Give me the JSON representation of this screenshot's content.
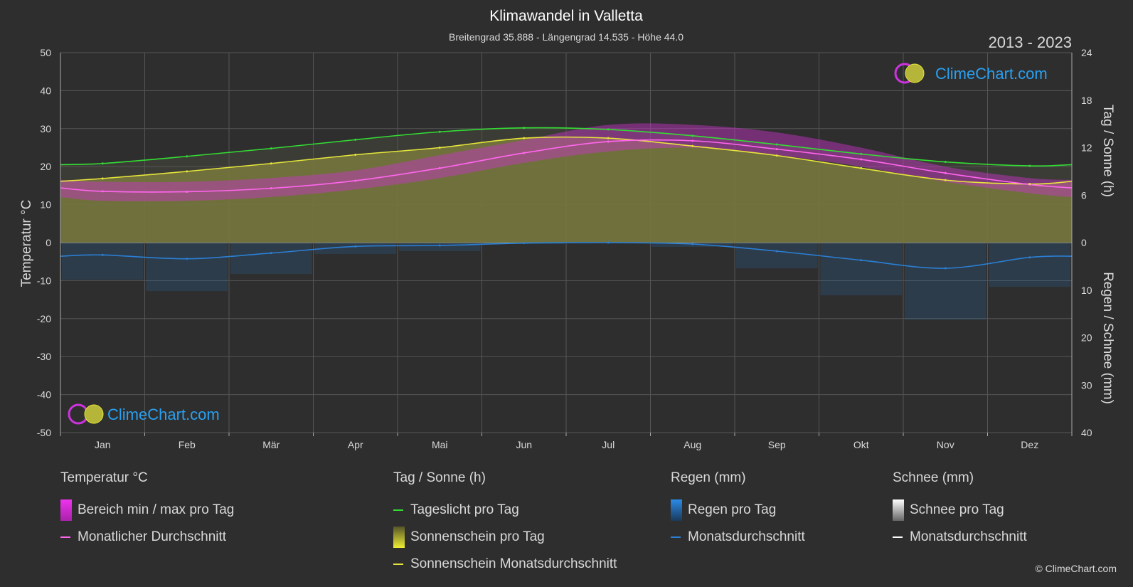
{
  "title": "Klimawandel in Valletta",
  "subtitle": "Breitengrad 35.888 - Längengrad 14.535 - Höhe 44.0",
  "year_range": "2013 - 2023",
  "brand": "ClimeChart.com",
  "copyright": "© ClimeChart.com",
  "colors": {
    "background": "#2e2e2e",
    "grid": "#555555",
    "daylight": "#33dd33",
    "sunshine_avg": "#e6e63a",
    "sunshine_fill": "#8c8c3a",
    "temp_avg": "#ff66ee",
    "temp_range": "#cc33cc",
    "rain": "#2a7fd4",
    "snow_avg": "#ffffff",
    "brand_text": "#2aa0f0"
  },
  "chart_data": {
    "type": "line",
    "categories": [
      "Jan",
      "Feb",
      "Mär",
      "Apr",
      "Mai",
      "Jun",
      "Jul",
      "Aug",
      "Sep",
      "Okt",
      "Nov",
      "Dez"
    ],
    "y_left": {
      "label": "Temperatur °C",
      "range": [
        -50,
        50
      ],
      "ticks": [
        50,
        40,
        30,
        20,
        10,
        0,
        -10,
        -20,
        -30,
        -40,
        -50
      ]
    },
    "y_right_top": {
      "label": "Tag / Sonne (h)",
      "range": [
        0,
        24
      ],
      "ticks": [
        24,
        18,
        12,
        6,
        0
      ]
    },
    "y_right_bottom": {
      "label": "Regen / Schnee (mm)",
      "range": [
        0,
        40
      ],
      "ticks": [
        0,
        10,
        20,
        30,
        40
      ]
    },
    "series": [
      {
        "name": "Tageslicht pro Tag",
        "unit": "h",
        "values": [
          10.0,
          10.9,
          11.9,
          13.0,
          14.0,
          14.5,
          14.3,
          13.5,
          12.4,
          11.2,
          10.2,
          9.7
        ]
      },
      {
        "name": "Sonnenschein Monatsdurchschnitt",
        "unit": "h",
        "values": [
          8.1,
          9.0,
          10.0,
          11.1,
          12.0,
          13.2,
          13.2,
          12.2,
          11.0,
          9.4,
          7.9,
          7.4
        ]
      },
      {
        "name": "Monatlicher Durchschnitt",
        "unit": "°C",
        "values": [
          13.5,
          13.4,
          14.3,
          16.3,
          19.6,
          23.6,
          26.6,
          26.8,
          24.6,
          21.9,
          18.3,
          15.3
        ]
      },
      {
        "name": "Monatsdurchschnitt Regen",
        "unit": "mm",
        "values": [
          2.6,
          3.4,
          2.2,
          0.8,
          0.6,
          0.1,
          0.0,
          0.3,
          1.8,
          3.7,
          5.4,
          3.1
        ]
      },
      {
        "name": "Monatsdurchschnitt Schnee",
        "unit": "mm",
        "values": [
          0,
          0,
          0,
          0,
          0,
          0,
          0,
          0,
          0,
          0,
          0,
          0
        ]
      }
    ],
    "temp_range_band": {
      "name": "Bereich min / max pro Tag",
      "min": [
        11,
        11,
        12,
        14,
        17,
        21,
        24,
        25,
        23,
        20,
        16,
        13
      ],
      "max": [
        16,
        16,
        17,
        19,
        23,
        27,
        31,
        31,
        29,
        25,
        20,
        17
      ]
    },
    "grid": true
  },
  "legend": {
    "temperature": {
      "heading": "Temperatur °C",
      "items": [
        "Bereich min / max pro Tag",
        "Monatlicher Durchschnitt"
      ]
    },
    "day_sun": {
      "heading": "Tag / Sonne (h)",
      "items": [
        "Tageslicht pro Tag",
        "Sonnenschein pro Tag",
        "Sonnenschein Monatsdurchschnitt"
      ]
    },
    "rain": {
      "heading": "Regen (mm)",
      "items": [
        "Regen pro Tag",
        "Monatsdurchschnitt"
      ]
    },
    "snow": {
      "heading": "Schnee (mm)",
      "items": [
        "Schnee pro Tag",
        "Monatsdurchschnitt"
      ]
    }
  }
}
